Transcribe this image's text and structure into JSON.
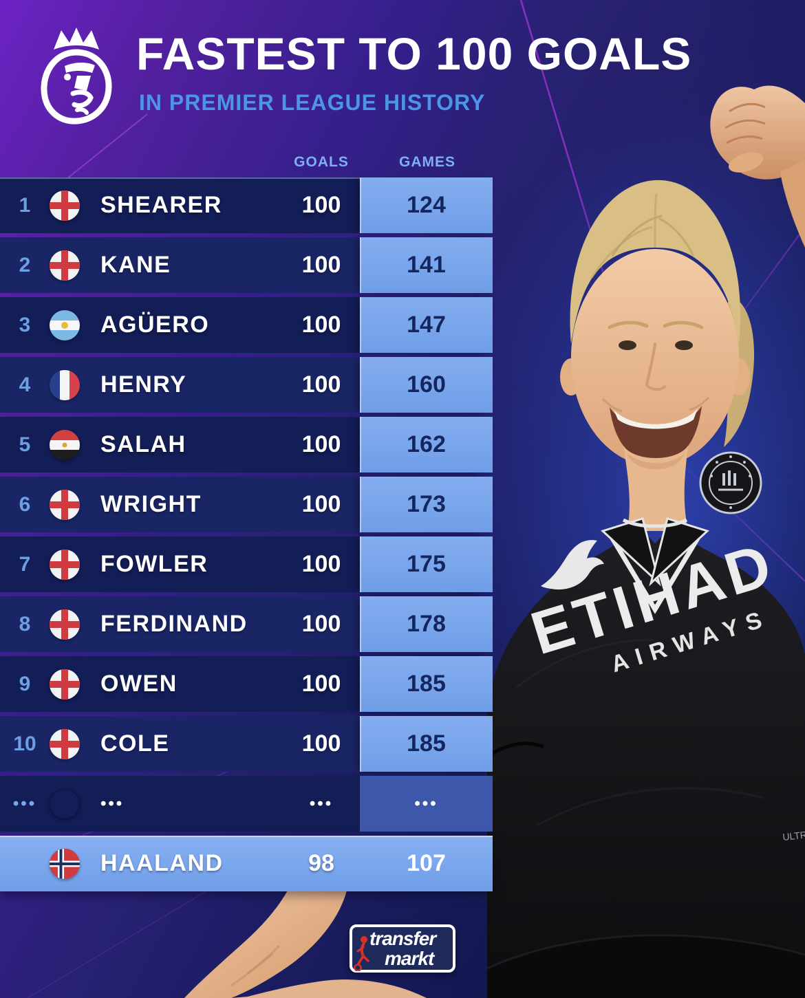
{
  "header": {
    "title": "FASTEST TO 100 GOALS",
    "subtitle": "IN PREMIER LEAGUE HISTORY",
    "logo_icon": "premier-league-lion"
  },
  "table": {
    "columns": {
      "goals": "GOALS",
      "games": "GAMES"
    },
    "rows": [
      {
        "type": "normal",
        "rank": "1",
        "flag": "england",
        "flag_icon": "england-flag",
        "name": "SHEARER",
        "goals": "100",
        "games": "124"
      },
      {
        "type": "normal",
        "rank": "2",
        "flag": "england",
        "flag_icon": "england-flag",
        "name": "KANE",
        "goals": "100",
        "games": "141"
      },
      {
        "type": "normal",
        "rank": "3",
        "flag": "argentina",
        "flag_icon": "argentina-flag",
        "name": "AGÜERO",
        "goals": "100",
        "games": "147"
      },
      {
        "type": "normal",
        "rank": "4",
        "flag": "france",
        "flag_icon": "france-flag",
        "name": "HENRY",
        "goals": "100",
        "games": "160"
      },
      {
        "type": "normal",
        "rank": "5",
        "flag": "egypt",
        "flag_icon": "egypt-flag",
        "name": "SALAH",
        "goals": "100",
        "games": "162"
      },
      {
        "type": "normal",
        "rank": "6",
        "flag": "england",
        "flag_icon": "england-flag",
        "name": "WRIGHT",
        "goals": "100",
        "games": "173"
      },
      {
        "type": "normal",
        "rank": "7",
        "flag": "england",
        "flag_icon": "england-flag",
        "name": "FOWLER",
        "goals": "100",
        "games": "175"
      },
      {
        "type": "normal",
        "rank": "8",
        "flag": "england",
        "flag_icon": "england-flag",
        "name": "FERDINAND",
        "goals": "100",
        "games": "178"
      },
      {
        "type": "normal",
        "rank": "9",
        "flag": "england",
        "flag_icon": "england-flag",
        "name": "OWEN",
        "goals": "100",
        "games": "185"
      },
      {
        "type": "normal",
        "rank": "10",
        "flag": "england",
        "flag_icon": "england-flag",
        "name": "COLE",
        "goals": "100",
        "games": "185"
      },
      {
        "type": "ellipsis",
        "rank": "•••",
        "flag": null,
        "name": "•••",
        "goals": "•••",
        "games": "•••"
      },
      {
        "type": "highlight",
        "rank": "",
        "flag": "norway",
        "flag_icon": "norway-flag",
        "name": "HAALAND",
        "goals": "98",
        "games": "107"
      }
    ]
  },
  "player": {
    "jersey_sponsor": "ETIHAD",
    "jersey_sponsor2": "AIRWAYS",
    "jersey_small_text": "ULTR",
    "badge_icon": "manchester-city-badge",
    "kit_brand_icon": "puma-logo"
  },
  "footer": {
    "brand_line1": "transfer",
    "brand_line2": "markt",
    "logo_icon": "transfermarkt-logo"
  },
  "colors": {
    "background_top": "#6d22c4",
    "background_bottom": "#090f38",
    "row_navy": "#131d56",
    "row_navy_alt": "#1a2565",
    "games_column_blue": "#7aa6ea",
    "highlight_row_blue": "#7da9ee",
    "rank_blue": "#6d9fe4",
    "games_text_navy": "#15265f",
    "subtitle_blue": "#4d95e6",
    "line_magenta": "#a535da",
    "jersey_black": "#141416",
    "skin": "#ecc09c"
  }
}
